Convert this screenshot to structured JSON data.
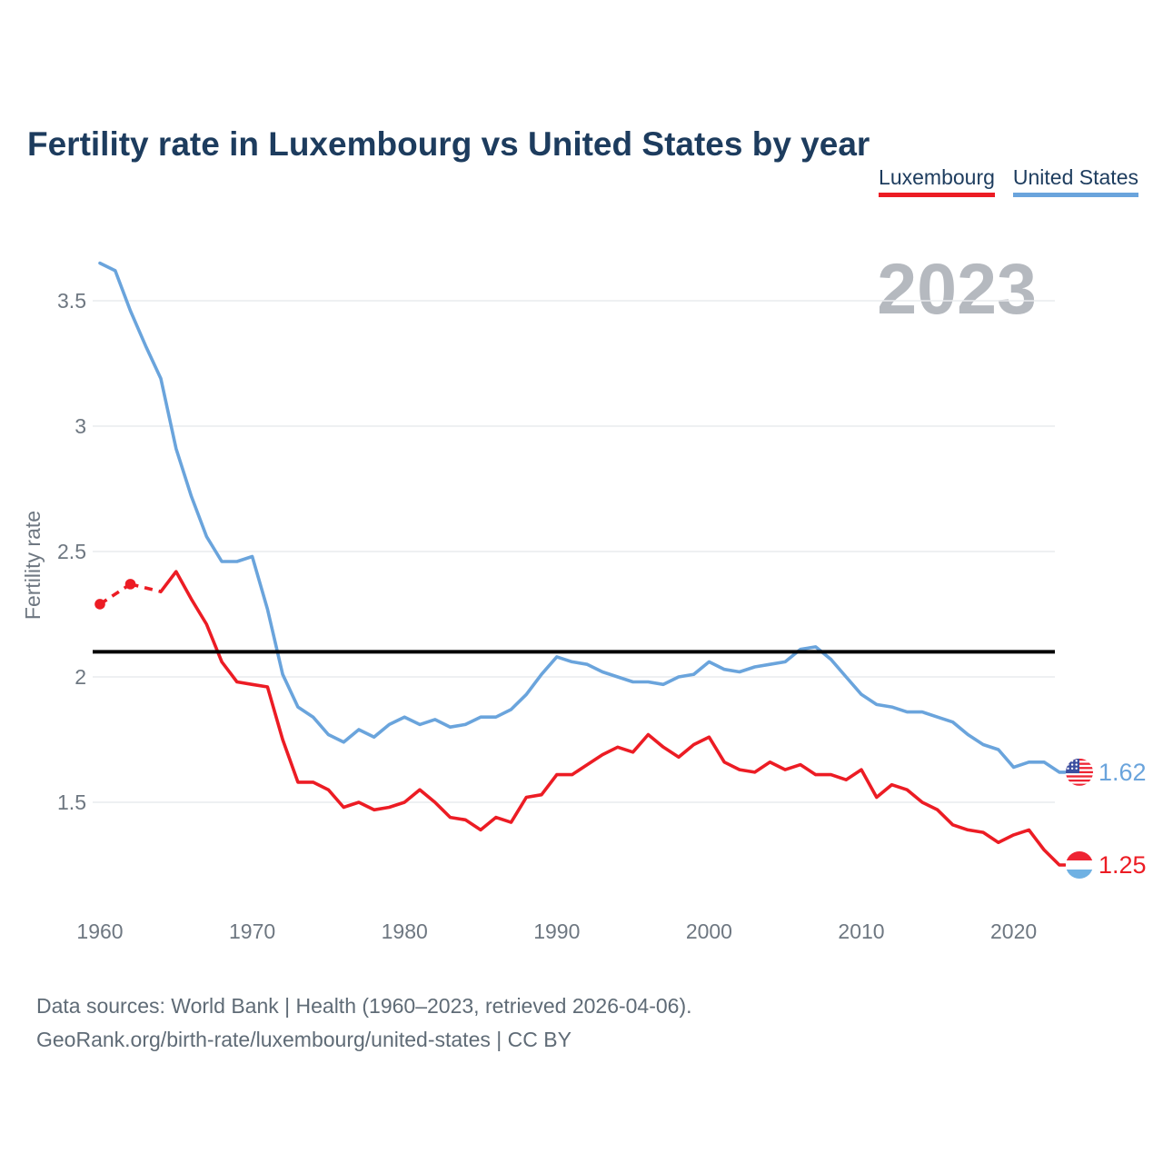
{
  "title": "Fertility rate in Luxembourg vs United States by year",
  "legend": [
    {
      "label": "Luxembourg",
      "color": "#ec1c24"
    },
    {
      "label": "United States",
      "color": "#6aa4dc"
    }
  ],
  "watermark": "2023",
  "footer": {
    "line1": "Data sources: World Bank | Health (1960–2023, retrieved 2026-04-06).",
    "line2": "GeoRank.org/birth-rate/luxembourg/united-states | CC BY"
  },
  "colors": {
    "title": "#1d3c5e",
    "gridline": "#e9ebee",
    "tick_text": "#6e7781",
    "watermark": "#b5b9bf",
    "reference_line": "#000000",
    "luxembourg": "#ec1c24",
    "united_states": "#6aa4dc"
  },
  "chart_data": {
    "type": "line",
    "title": "Fertility rate in Luxembourg vs United States by year",
    "xlabel": "",
    "ylabel": "Fertility rate",
    "x_ticks": [
      1960,
      1970,
      1980,
      1990,
      2000,
      2010,
      2020
    ],
    "y_ticks": [
      1.5,
      2,
      2.5,
      3,
      3.5
    ],
    "xlim": [
      1959.4,
      2026.5
    ],
    "ylim": [
      1.1,
      3.72
    ],
    "grid": "horizontal",
    "legend_position": "top-right",
    "reference_line": 2.1,
    "watermark": "2023",
    "x": [
      1960,
      1961,
      1962,
      1963,
      1964,
      1965,
      1966,
      1967,
      1968,
      1969,
      1970,
      1971,
      1972,
      1973,
      1974,
      1975,
      1976,
      1977,
      1978,
      1979,
      1980,
      1981,
      1982,
      1983,
      1984,
      1985,
      1986,
      1987,
      1988,
      1989,
      1990,
      1991,
      1992,
      1993,
      1994,
      1995,
      1996,
      1997,
      1998,
      1999,
      2000,
      2001,
      2002,
      2003,
      2004,
      2005,
      2006,
      2007,
      2008,
      2009,
      2010,
      2011,
      2012,
      2013,
      2014,
      2015,
      2016,
      2017,
      2018,
      2019,
      2020,
      2021,
      2022,
      2023
    ],
    "series": [
      {
        "name": "Luxembourg",
        "color": "#ec1c24",
        "flag": "luxembourg-flag-icon",
        "end_label": "1.25",
        "gap_style": "dashed-with-dots",
        "values": [
          2.29,
          null,
          2.37,
          null,
          2.34,
          2.42,
          2.31,
          2.21,
          2.06,
          1.98,
          1.97,
          1.96,
          1.75,
          1.58,
          1.58,
          1.55,
          1.48,
          1.5,
          1.47,
          1.48,
          1.5,
          1.55,
          1.5,
          1.44,
          1.43,
          1.39,
          1.44,
          1.42,
          1.52,
          1.53,
          1.61,
          1.61,
          1.65,
          1.69,
          1.72,
          1.7,
          1.77,
          1.72,
          1.68,
          1.73,
          1.76,
          1.66,
          1.63,
          1.62,
          1.66,
          1.63,
          1.65,
          1.61,
          1.61,
          1.59,
          1.63,
          1.52,
          1.57,
          1.55,
          1.5,
          1.47,
          1.41,
          1.39,
          1.38,
          1.34,
          1.37,
          1.39,
          1.31,
          1.25
        ]
      },
      {
        "name": "United States",
        "color": "#6aa4dc",
        "flag": "us-flag-icon",
        "end_label": "1.62",
        "gap_style": "none",
        "values": [
          3.65,
          3.62,
          3.46,
          3.32,
          3.19,
          2.91,
          2.72,
          2.56,
          2.46,
          2.46,
          2.48,
          2.27,
          2.01,
          1.88,
          1.84,
          1.77,
          1.74,
          1.79,
          1.76,
          1.81,
          1.84,
          1.81,
          1.83,
          1.8,
          1.81,
          1.84,
          1.84,
          1.87,
          1.93,
          2.01,
          2.08,
          2.06,
          2.05,
          2.02,
          2.0,
          1.98,
          1.98,
          1.97,
          2.0,
          2.01,
          2.06,
          2.03,
          2.02,
          2.04,
          2.05,
          2.06,
          2.11,
          2.12,
          2.07,
          2.0,
          1.93,
          1.89,
          1.88,
          1.86,
          1.86,
          1.84,
          1.82,
          1.77,
          1.73,
          1.71,
          1.64,
          1.66,
          1.66,
          1.62
        ]
      }
    ]
  }
}
